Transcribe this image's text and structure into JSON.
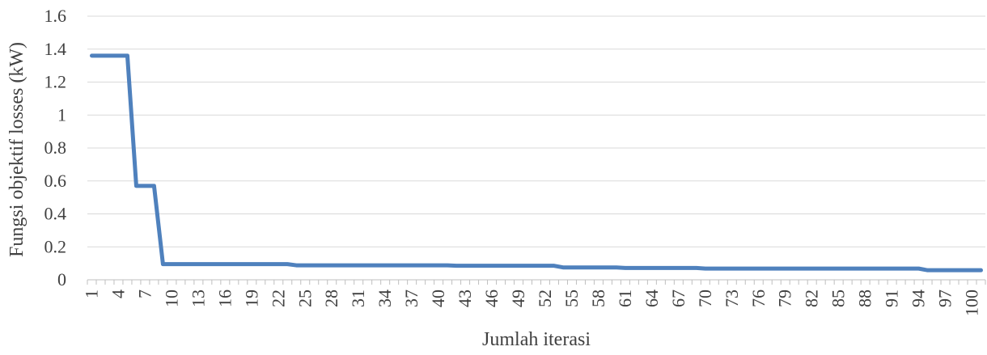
{
  "chart_data": {
    "type": "line",
    "title": "",
    "xlabel": "Jumlah iterasi",
    "ylabel": "Fungsi objektif losses (kW)",
    "ylim": [
      0,
      1.6
    ],
    "yticks": [
      "0",
      "0.2",
      "0.4",
      "0.6",
      "0.8",
      "1",
      "1.2",
      "1.4",
      "1.6"
    ],
    "xlim": [
      1,
      101
    ],
    "xticks": [
      1,
      4,
      7,
      10,
      13,
      16,
      19,
      22,
      25,
      28,
      31,
      34,
      37,
      40,
      43,
      46,
      49,
      52,
      55,
      58,
      61,
      64,
      67,
      70,
      73,
      76,
      79,
      82,
      85,
      88,
      91,
      94,
      97,
      100
    ],
    "grid": true,
    "line_color": "#4f81bd",
    "series": [
      {
        "points": [
          [
            1,
            1.36
          ],
          [
            5,
            1.36
          ],
          [
            6,
            0.57
          ],
          [
            8,
            0.57
          ],
          [
            9,
            0.095
          ],
          [
            23,
            0.095
          ],
          [
            24,
            0.088
          ],
          [
            41,
            0.088
          ],
          [
            42,
            0.085
          ],
          [
            53,
            0.085
          ],
          [
            54,
            0.075
          ],
          [
            60,
            0.075
          ],
          [
            61,
            0.072
          ],
          [
            69,
            0.072
          ],
          [
            70,
            0.068
          ],
          [
            94,
            0.068
          ],
          [
            95,
            0.058
          ],
          [
            101,
            0.058
          ]
        ]
      }
    ]
  }
}
